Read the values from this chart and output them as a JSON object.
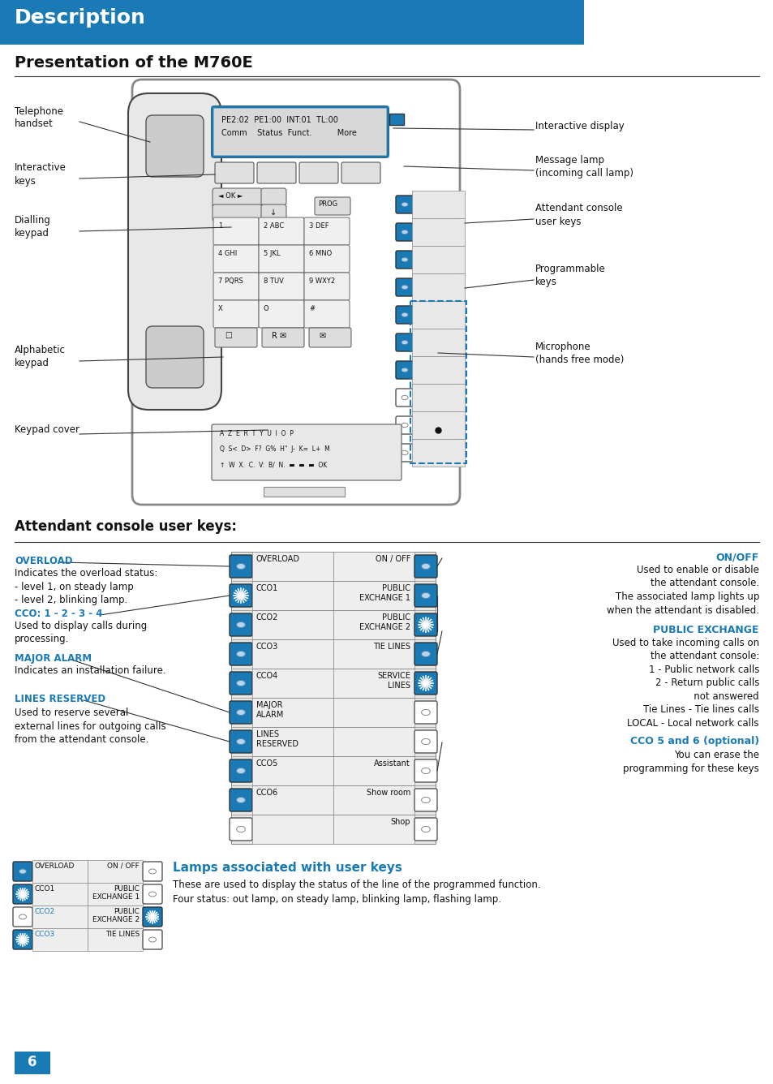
{
  "title_bg_color": "#1a6fa0",
  "title_text": "Description",
  "title_text_color": "#ffffff",
  "section1_title": "Presentation of the M760E",
  "blue_color": "#1a7ab5",
  "bg_color": "#ffffff",
  "text_color": "#222222",
  "page_number": "6",
  "key_rows": [
    {
      "left_lamp": "blue_oval",
      "left_label": "OVERLOAD",
      "right_label": "ON / OFF",
      "right_lamp": "blue_oval"
    },
    {
      "left_lamp": "blue_star",
      "left_label": "CCO1",
      "right_label": "PUBLIC\nEXCHANGE 1",
      "right_lamp": "blue_oval"
    },
    {
      "left_lamp": "blue_oval",
      "left_label": "CCO2",
      "right_label": "PUBLIC\nEXCHANGE 2",
      "right_lamp": "blue_star"
    },
    {
      "left_lamp": "blue_oval",
      "left_label": "CCO3",
      "right_label": "TIE LINES",
      "right_lamp": "blue_oval"
    },
    {
      "left_lamp": "blue_oval",
      "left_label": "CCO4",
      "right_label": "SERVICE\nLINES",
      "right_lamp": "blue_star"
    },
    {
      "left_lamp": "blue_oval",
      "left_label": "MAJOR\nALARM",
      "right_label": "",
      "right_lamp": "white_oval"
    },
    {
      "left_lamp": "blue_oval",
      "left_label": "LINES\nRESERVED",
      "right_label": "",
      "right_lamp": "white_oval"
    },
    {
      "left_lamp": "blue_oval",
      "left_label": "CCO5",
      "right_label": "Assistant",
      "right_lamp": "white_oval"
    },
    {
      "left_lamp": "blue_oval",
      "left_label": "CCO6",
      "right_label": "Show room",
      "right_lamp": "white_oval"
    },
    {
      "left_lamp": "white_oval",
      "left_label": "",
      "right_label": "Shop",
      "right_lamp": "white_oval"
    }
  ],
  "mini_rows": [
    {
      "left_lamp": "blue_oval",
      "left_label": "OVERLOAD",
      "right_label": "ON / OFF",
      "right_lamp": "white_oval",
      "left_label_color": "black"
    },
    {
      "left_lamp": "blue_star",
      "left_label": "CCO1",
      "right_label": "PUBLIC\nEXCHANGE 1",
      "right_lamp": "white_oval",
      "left_label_color": "black"
    },
    {
      "left_lamp": "white_oval",
      "left_label": "CCO2",
      "right_label": "PUBLIC\nEXCHANGE 2",
      "right_lamp": "blue_star",
      "left_label_color": "blue"
    },
    {
      "left_lamp": "blue_star",
      "left_label": "CCO3",
      "right_label": "TIE LINES",
      "right_lamp": "white_oval",
      "left_label_color": "blue"
    }
  ],
  "lamps_title": "Lamps associated with user keys",
  "lamps_text": "These are used to display the status of the line of the programmed function.\nFour status: out lamp, on steady lamp, blinking lamp, flashing lamp."
}
